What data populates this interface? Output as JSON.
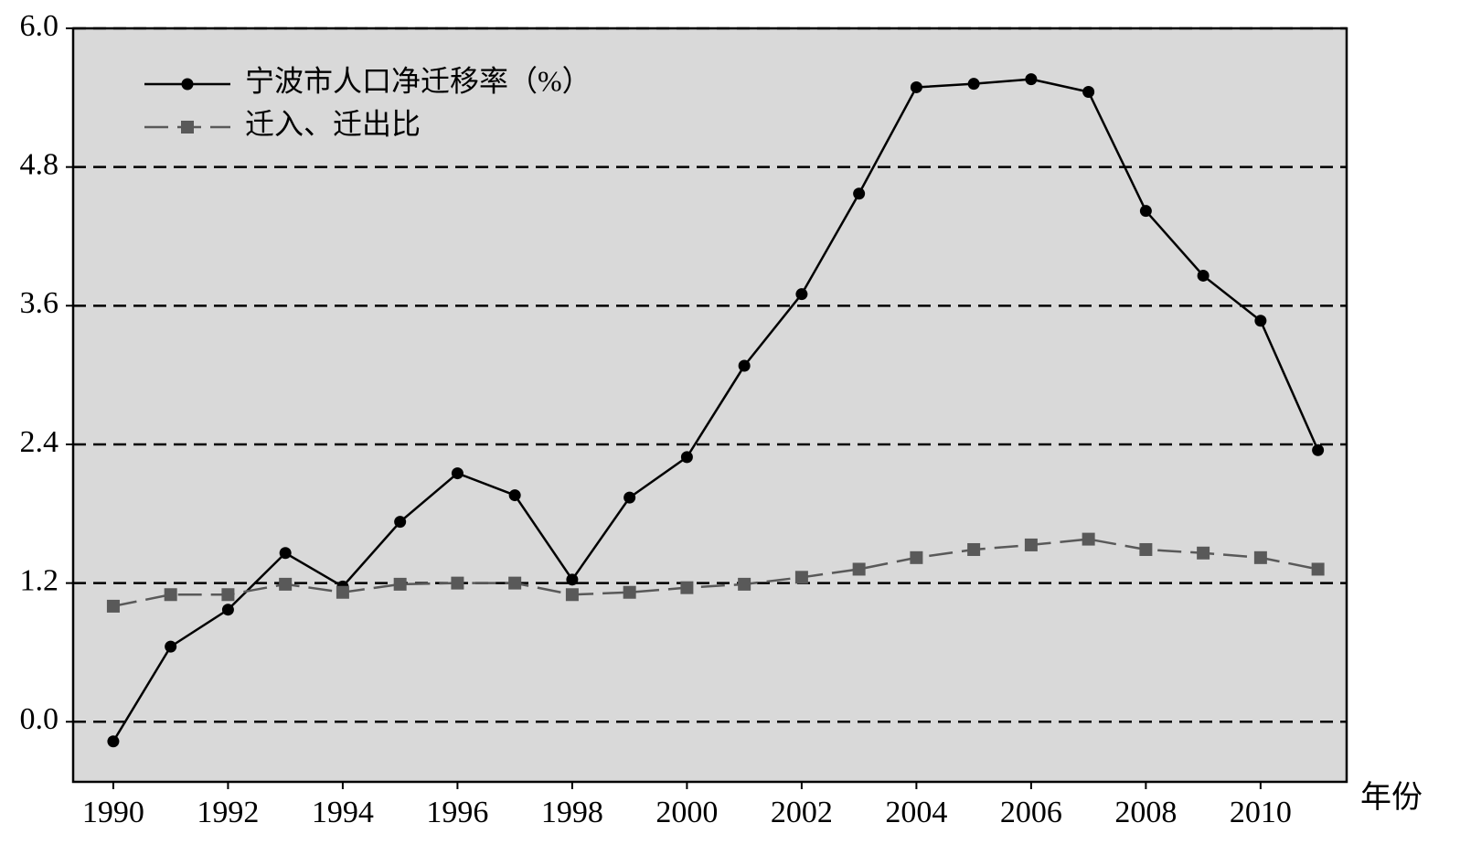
{
  "chart_data": {
    "type": "line",
    "x": [
      1990,
      1991,
      1992,
      1993,
      1994,
      1995,
      1996,
      1997,
      1998,
      1999,
      2000,
      2001,
      2002,
      2003,
      2004,
      2005,
      2006,
      2007,
      2008,
      2009,
      2010,
      2011
    ],
    "series": [
      {
        "name": "宁波市人口净迁移率（%）",
        "color": "#000000",
        "marker": "circle",
        "dash": false,
        "values": [
          -0.17,
          0.65,
          0.97,
          1.46,
          1.17,
          1.73,
          2.15,
          1.96,
          1.23,
          1.94,
          2.29,
          3.08,
          3.7,
          4.57,
          5.49,
          5.52,
          5.56,
          5.45,
          4.42,
          3.86,
          3.47,
          2.35
        ]
      },
      {
        "name": "迁入、迁出比",
        "color": "#595959",
        "marker": "square",
        "dash": true,
        "values": [
          1.0,
          1.1,
          1.1,
          1.19,
          1.12,
          1.19,
          1.2,
          1.2,
          1.1,
          1.12,
          1.16,
          1.19,
          1.25,
          1.32,
          1.42,
          1.49,
          1.53,
          1.58,
          1.49,
          1.46,
          1.42,
          1.32
        ]
      }
    ],
    "x_label": "年份",
    "xlim": [
      1989.3,
      2011.5
    ],
    "xticks": [
      1990,
      1992,
      1994,
      1996,
      1998,
      2000,
      2002,
      2004,
      2006,
      2008,
      2010
    ],
    "ylim": [
      -0.52,
      6.0
    ],
    "yticks": [
      {
        "value": 0,
        "label": "0.0"
      },
      {
        "value": 1.2,
        "label": "1.2"
      },
      {
        "value": 2.4,
        "label": "2.4"
      },
      {
        "value": 3.6,
        "label": "3.6"
      },
      {
        "value": 4.8,
        "label": "4.8"
      },
      {
        "value": 6,
        "label": "6.0"
      }
    ],
    "grid": true,
    "legend": "upper left"
  }
}
